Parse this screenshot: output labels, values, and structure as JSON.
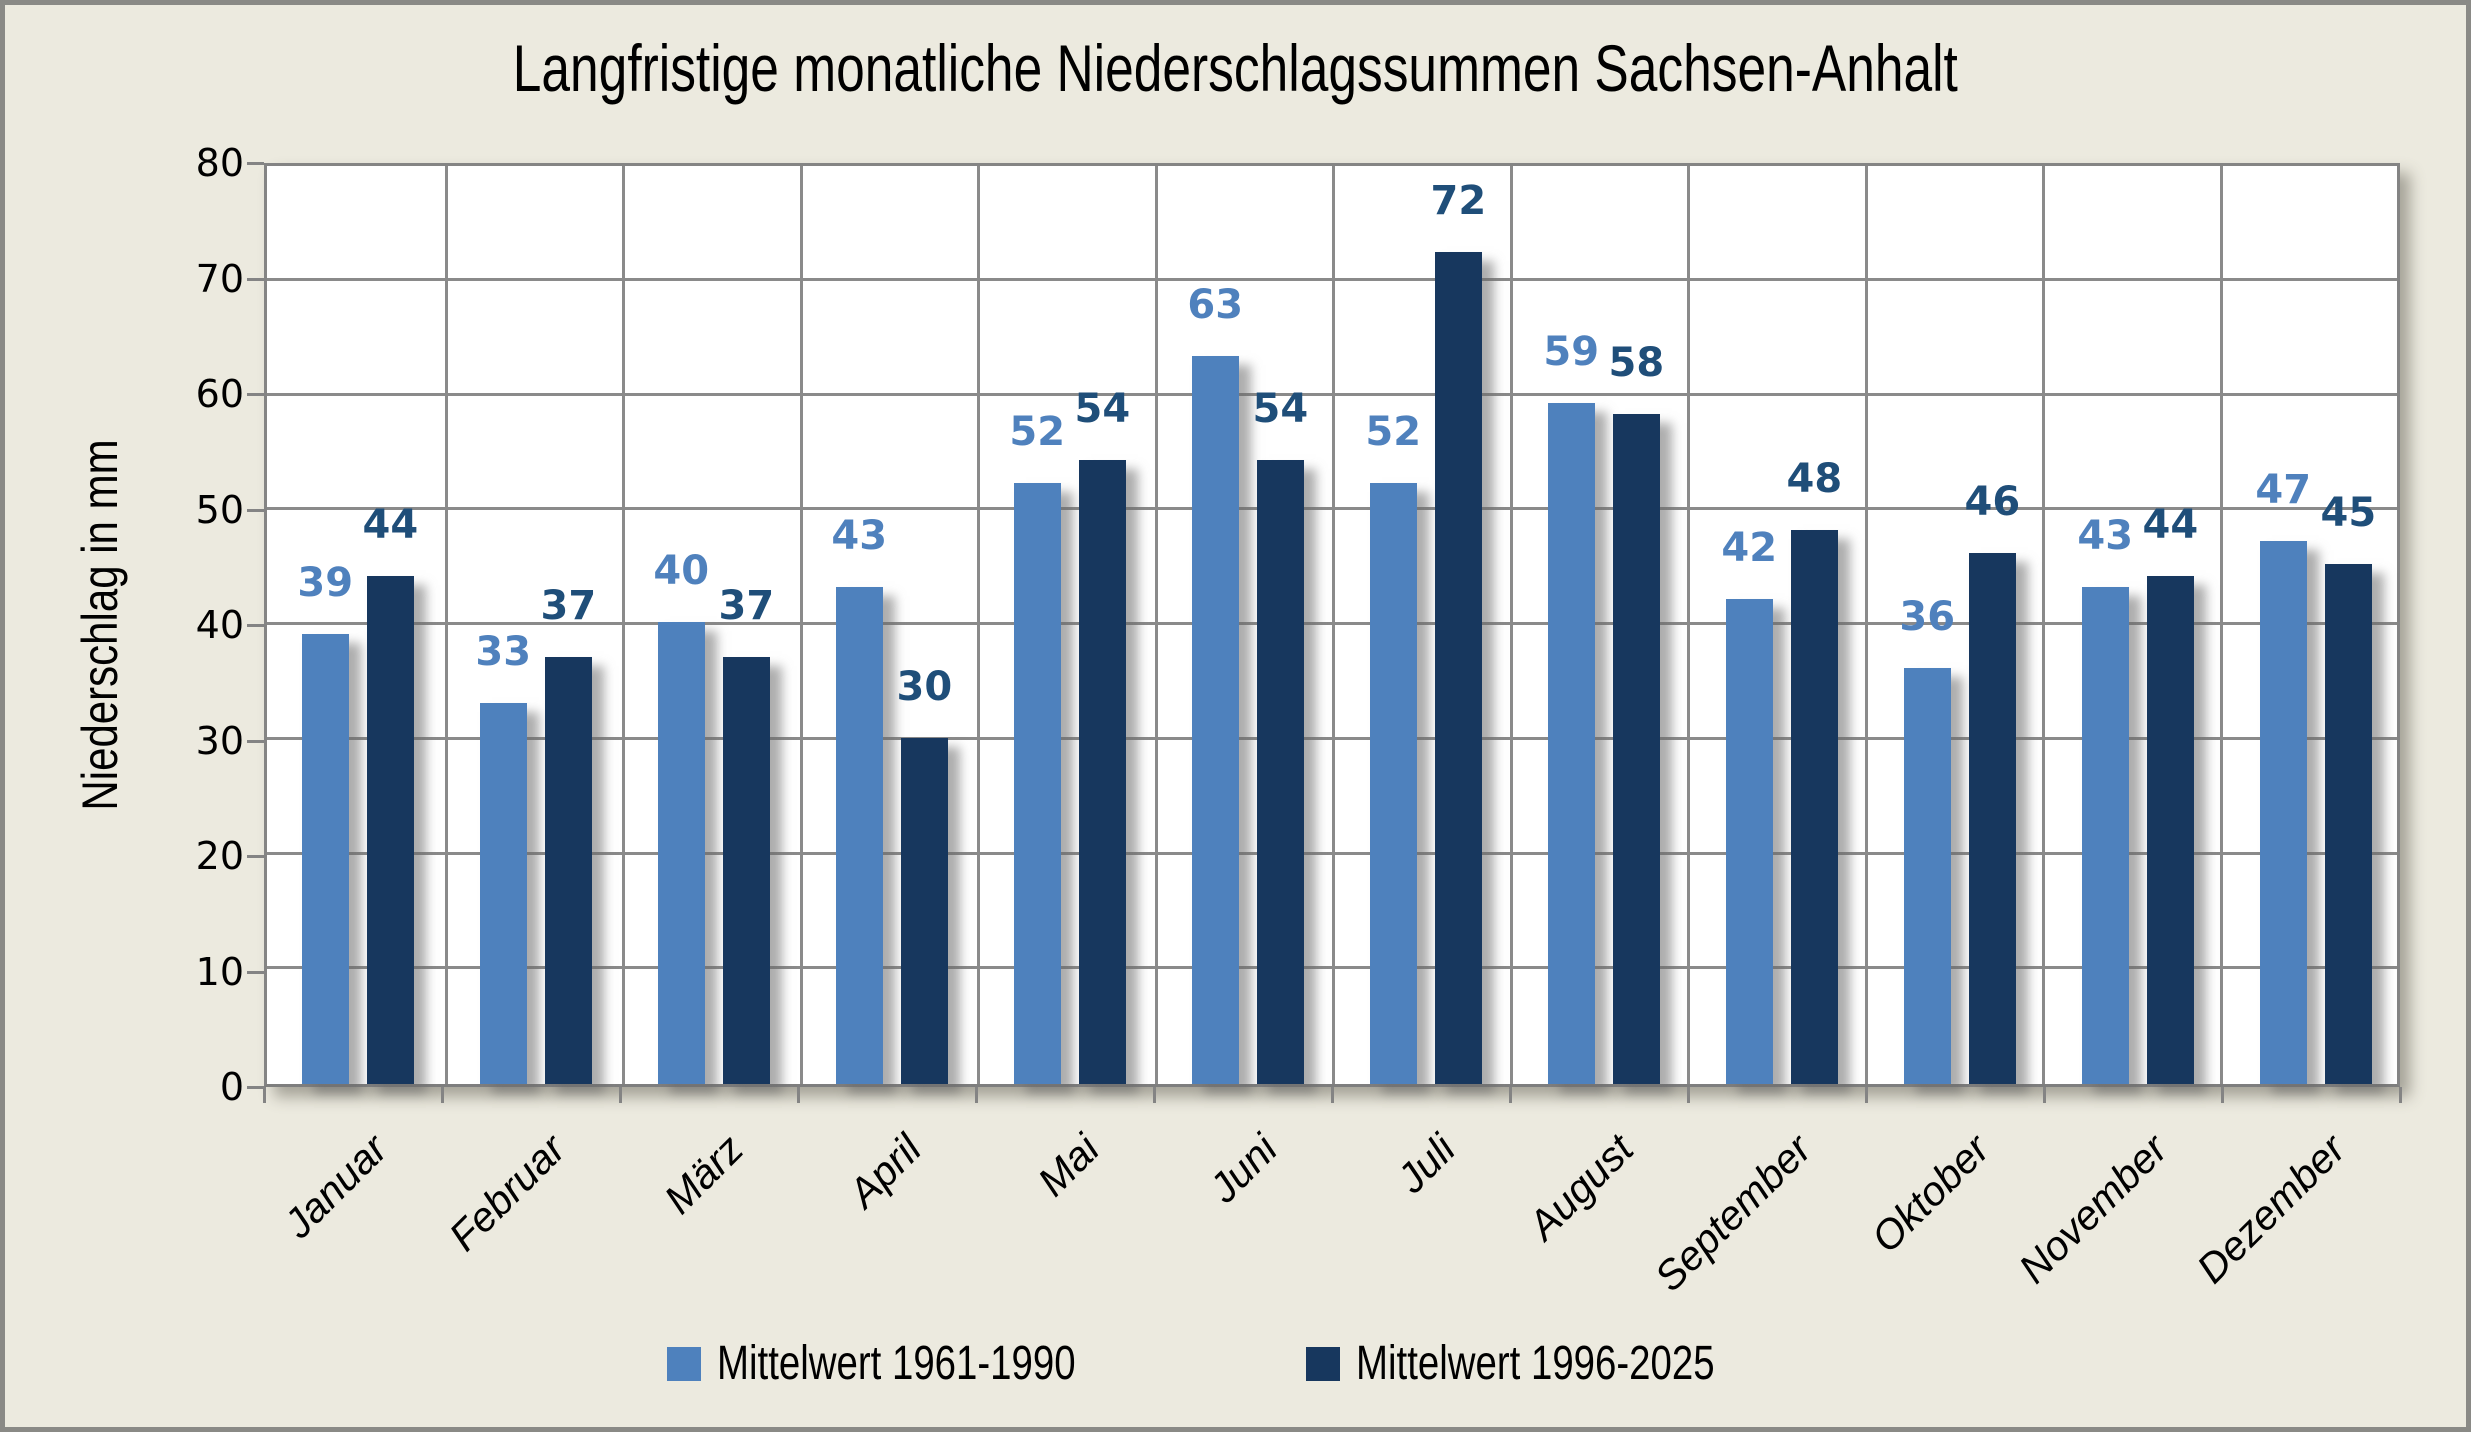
{
  "title": "Langfristige monatliche Niederschlagssummen Sachsen-Anhalt",
  "chart_data": {
    "type": "bar",
    "title": "Langfristige monatliche Niederschlagssummen Sachsen-Anhalt",
    "ylabel": "Niederschlag in mm",
    "xlabel": "",
    "ylim": [
      0,
      80
    ],
    "yticks": [
      0,
      10,
      20,
      30,
      40,
      50,
      60,
      70,
      80
    ],
    "grid": true,
    "legend_position": "bottom",
    "categories": [
      "Januar",
      "Februar",
      "März",
      "April",
      "Mai",
      "Juni",
      "Juli",
      "August",
      "September",
      "Oktober",
      "November",
      "Dezember"
    ],
    "series": [
      {
        "name": "Mittelwert 1961-1990",
        "color": "#4E81BD",
        "label_color": "#4F81BD",
        "values": [
          39,
          33,
          40,
          43,
          52,
          63,
          52,
          59,
          42,
          36,
          43,
          47
        ]
      },
      {
        "name": "Mittelwert 1996-2025",
        "color": "#17375E",
        "label_color": "#1F4E79",
        "values": [
          44,
          37,
          37,
          30,
          54,
          54,
          72,
          58,
          48,
          46,
          44,
          45
        ]
      }
    ]
  },
  "colors": {
    "background": "#ECEADF",
    "plot_background": "#FFFFFF",
    "gridline": "#8A8A8A",
    "axis": "#848484",
    "frame_border": "#8A8A86",
    "text": "#000000"
  }
}
